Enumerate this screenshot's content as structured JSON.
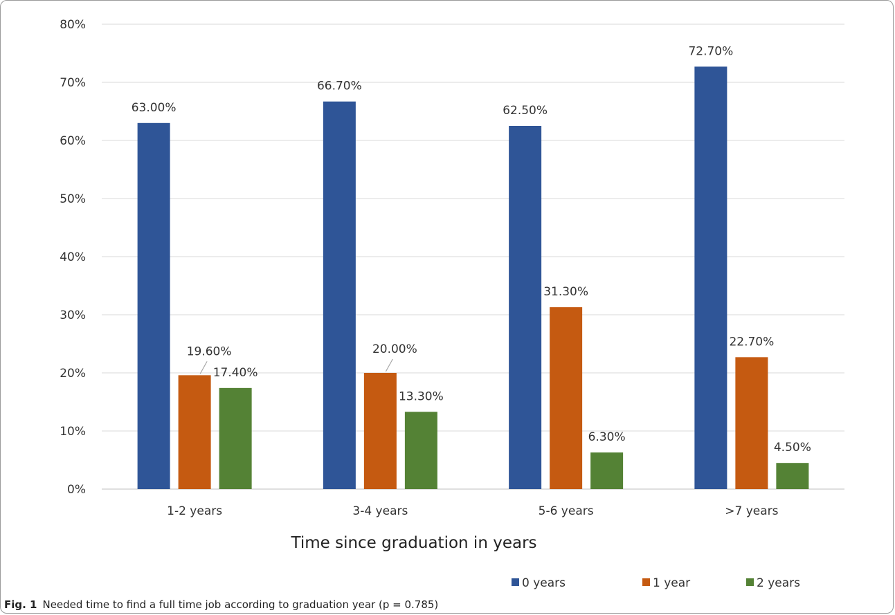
{
  "chart_data": {
    "type": "bar",
    "categories": [
      "1-2 years",
      "3-4 years",
      "5-6 years",
      ">7 years"
    ],
    "series": [
      {
        "name": "0 years",
        "values": [
          63.0,
          66.7,
          62.5,
          72.7
        ],
        "labels": [
          "63.00%",
          "66.70%",
          "62.50%",
          "72.70%"
        ],
        "color": "#2f5597"
      },
      {
        "name": "1 year",
        "values": [
          19.6,
          20.0,
          31.3,
          22.7
        ],
        "labels": [
          "19.60%",
          "20.00%",
          "31.30%",
          "22.70%"
        ],
        "color": "#c55a11"
      },
      {
        "name": "2 years",
        "values": [
          17.4,
          13.3,
          6.3,
          4.5
        ],
        "labels": [
          "17.40%",
          "13.30%",
          "6.30%",
          "4.50%"
        ],
        "color": "#548235"
      }
    ],
    "title": "",
    "xlabel": "Time since graduation in years",
    "ylabel": "",
    "ylim": [
      0,
      80
    ],
    "yticks": [
      "0%",
      "10%",
      "20%",
      "30%",
      "40%",
      "50%",
      "60%",
      "70%",
      "80%"
    ],
    "grid": true,
    "legend_position": "bottom-right"
  },
  "caption": {
    "label": "Fig. 1",
    "text": "Needed time to find a full time job according to graduation year (p = 0.785)"
  }
}
